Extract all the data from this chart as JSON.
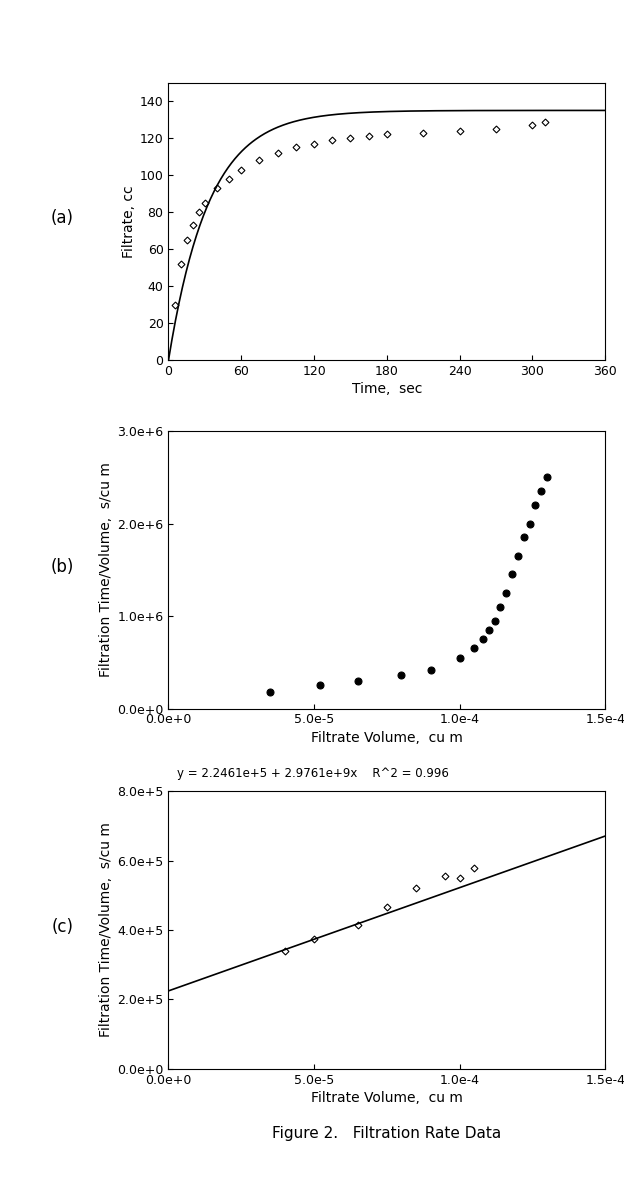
{
  "plot_a": {
    "label": "(a)",
    "time_data": [
      5,
      10,
      15,
      20,
      25,
      30,
      40,
      50,
      60,
      75,
      90,
      105,
      120,
      135,
      150,
      165,
      180,
      210,
      240,
      270,
      300,
      310
    ],
    "filtrate_data": [
      30,
      52,
      65,
      73,
      80,
      85,
      93,
      98,
      103,
      108,
      112,
      115,
      117,
      119,
      120,
      121,
      122,
      123,
      124,
      125,
      127,
      129
    ],
    "curve_A": 135,
    "curve_k": 0.03,
    "xlabel": "Time,  sec",
    "ylabel": "Filtrate, cc",
    "xlim": [
      0,
      360
    ],
    "ylim": [
      0,
      150
    ],
    "xticks": [
      0,
      60,
      120,
      180,
      240,
      300,
      360
    ],
    "yticks": [
      0,
      20,
      40,
      60,
      80,
      100,
      120,
      140
    ]
  },
  "plot_b": {
    "label": "(b)",
    "vol_data": [
      3.5e-05,
      5.2e-05,
      6.5e-05,
      8e-05,
      9e-05,
      0.0001,
      0.000105,
      0.000108,
      0.00011,
      0.000112,
      0.000114,
      0.000116,
      0.000118,
      0.00012,
      0.000122,
      0.000124,
      0.000126,
      0.000128,
      0.00013
    ],
    "tv_data": [
      180000.0,
      250000.0,
      300000.0,
      360000.0,
      420000.0,
      550000.0,
      650000.0,
      750000.0,
      850000.0,
      950000.0,
      1100000.0,
      1250000.0,
      1450000.0,
      1650000.0,
      1850000.0,
      2000000.0,
      2200000.0,
      2350000.0,
      2500000.0
    ],
    "xlabel": "Filtrate Volume,  cu m",
    "ylabel": "Filtration Time/Volume,  s/cu m",
    "xlim": [
      0.0,
      0.00015
    ],
    "ylim": [
      0.0,
      3000000.0
    ],
    "xticks": [
      0.0,
      5e-05,
      0.0001,
      0.00015
    ],
    "yticks": [
      0.0,
      1000000.0,
      2000000.0,
      3000000.0
    ]
  },
  "plot_c": {
    "label": "(c)",
    "vol_data": [
      4e-05,
      5e-05,
      6.5e-05,
      7.5e-05,
      8.5e-05,
      9.5e-05,
      0.0001,
      0.000105
    ],
    "tv_data": [
      340000.0,
      375000.0,
      415000.0,
      465000.0,
      520000.0,
      555000.0,
      550000.0,
      580000.0
    ],
    "intercept": 224610.0,
    "slope": 2976100000.0,
    "equation": "y = 2.2461e+5 + 2.9761e+9x    R^2 = 0.996",
    "xlabel": "Filtrate Volume,  cu m",
    "ylabel": "Filtration Time/Volume,  s/cu m",
    "xlim": [
      0.0,
      0.00015
    ],
    "ylim": [
      0.0,
      800000.0
    ],
    "xticks": [
      0.0,
      5e-05,
      0.0001,
      0.00015
    ],
    "yticks": [
      0.0,
      200000.0,
      400000.0,
      600000.0,
      800000.0
    ]
  },
  "figure_caption": "Figure 2.   Filtration Rate Data",
  "background_color": "#ffffff",
  "dot_color": "#000000",
  "line_color": "#000000"
}
